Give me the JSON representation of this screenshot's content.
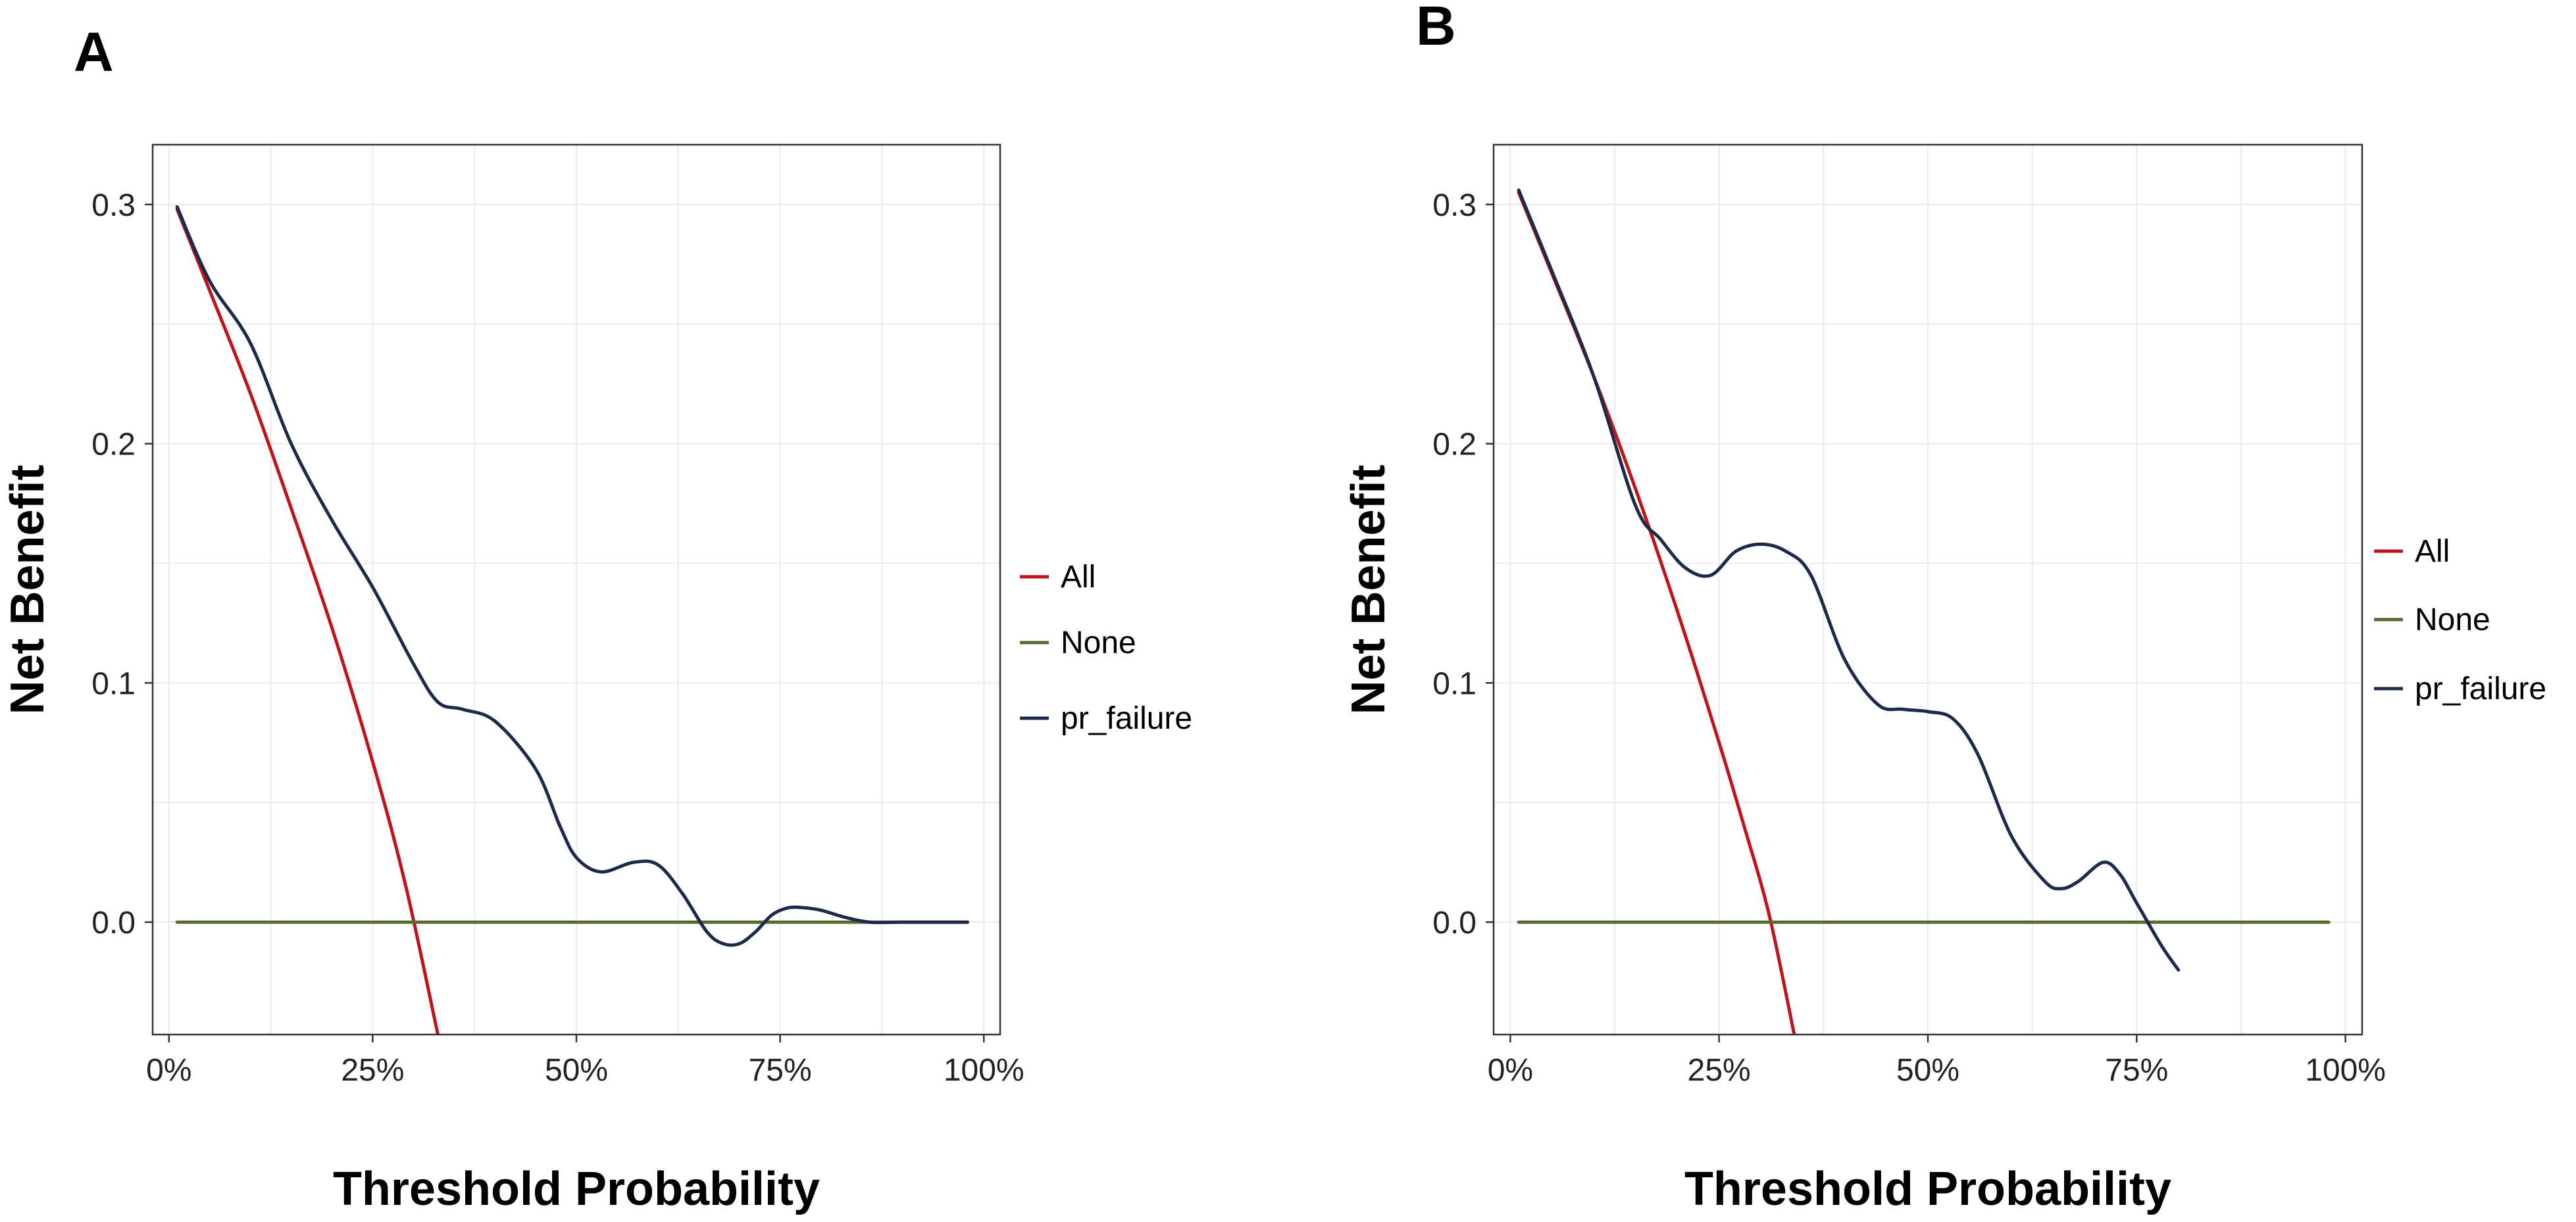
{
  "chart_data": [
    {
      "panel": "A",
      "type": "line",
      "xlabel": "Threshold Probability",
      "ylabel": "Net Benefit",
      "xlim": [
        -0.02,
        1.02
      ],
      "ylim": [
        -0.047,
        0.325
      ],
      "x_ticks": [
        0,
        0.25,
        0.5,
        0.75,
        1.0
      ],
      "x_tick_labels": [
        "0%",
        "25%",
        "50%",
        "75%",
        "100%"
      ],
      "y_ticks": [
        0,
        0.1,
        0.2,
        0.3
      ],
      "y_tick_labels": [
        "0.0",
        "0.1",
        "0.2",
        "0.3"
      ],
      "grid": true,
      "legend_position": "right",
      "series": [
        {
          "name": "All",
          "color": "#c0141c",
          "x": [
            0.01,
            0.05,
            0.1,
            0.15,
            0.2,
            0.25,
            0.29,
            0.33
          ],
          "y": [
            0.298,
            0.264,
            0.221,
            0.173,
            0.123,
            0.067,
            0.016,
            -0.047
          ]
        },
        {
          "name": "None",
          "color": "#556b2f",
          "x": [
            0.01,
            0.98
          ],
          "y": [
            0.0,
            0.0
          ]
        },
        {
          "name": "pr_failure",
          "color": "#1b2a4a",
          "x": [
            0.01,
            0.05,
            0.1,
            0.15,
            0.2,
            0.25,
            0.3,
            0.33,
            0.36,
            0.4,
            0.45,
            0.48,
            0.5,
            0.53,
            0.57,
            0.6,
            0.63,
            0.66,
            0.68,
            0.7,
            0.72,
            0.74,
            0.76,
            0.78,
            0.8,
            0.83,
            0.86,
            0.9,
            0.95,
            0.98
          ],
          "y": [
            0.299,
            0.268,
            0.242,
            0.2,
            0.168,
            0.14,
            0.108,
            0.092,
            0.089,
            0.084,
            0.064,
            0.04,
            0.027,
            0.021,
            0.025,
            0.024,
            0.012,
            -0.004,
            -0.009,
            -0.009,
            -0.004,
            0.003,
            0.006,
            0.006,
            0.005,
            0.002,
            0.0,
            0.0,
            0.0,
            0.0
          ]
        }
      ]
    },
    {
      "panel": "B",
      "type": "line",
      "xlabel": "Threshold Probability",
      "ylabel": "Net Benefit",
      "xlim": [
        -0.02,
        1.02
      ],
      "ylim": [
        -0.047,
        0.325
      ],
      "x_ticks": [
        0,
        0.25,
        0.5,
        0.75,
        1.0
      ],
      "x_tick_labels": [
        "0%",
        "25%",
        "50%",
        "75%",
        "100%"
      ],
      "y_ticks": [
        0,
        0.1,
        0.2,
        0.3
      ],
      "y_tick_labels": [
        "0.0",
        "0.1",
        "0.2",
        "0.3"
      ],
      "grid": true,
      "legend_position": "right",
      "series": [
        {
          "name": "All",
          "color": "#c0141c",
          "x": [
            0.01,
            0.05,
            0.1,
            0.15,
            0.2,
            0.25,
            0.28,
            0.31,
            0.34
          ],
          "y": [
            0.305,
            0.271,
            0.228,
            0.181,
            0.13,
            0.075,
            0.04,
            0.003,
            -0.047
          ]
        },
        {
          "name": "None",
          "color": "#556b2f",
          "x": [
            0.01,
            0.98
          ],
          "y": [
            0.0,
            0.0
          ]
        },
        {
          "name": "pr_failure",
          "color": "#1b2a4a",
          "x": [
            0.01,
            0.05,
            0.1,
            0.15,
            0.18,
            0.21,
            0.24,
            0.27,
            0.3,
            0.33,
            0.36,
            0.4,
            0.44,
            0.47,
            0.5,
            0.53,
            0.56,
            0.6,
            0.64,
            0.66,
            0.68,
            0.71,
            0.73,
            0.75,
            0.78,
            0.8
          ],
          "y": [
            0.306,
            0.272,
            0.228,
            0.174,
            0.16,
            0.148,
            0.145,
            0.155,
            0.158,
            0.155,
            0.145,
            0.11,
            0.091,
            0.089,
            0.088,
            0.085,
            0.07,
            0.036,
            0.017,
            0.014,
            0.017,
            0.025,
            0.02,
            0.008,
            -0.01,
            -0.02
          ]
        }
      ]
    }
  ]
}
